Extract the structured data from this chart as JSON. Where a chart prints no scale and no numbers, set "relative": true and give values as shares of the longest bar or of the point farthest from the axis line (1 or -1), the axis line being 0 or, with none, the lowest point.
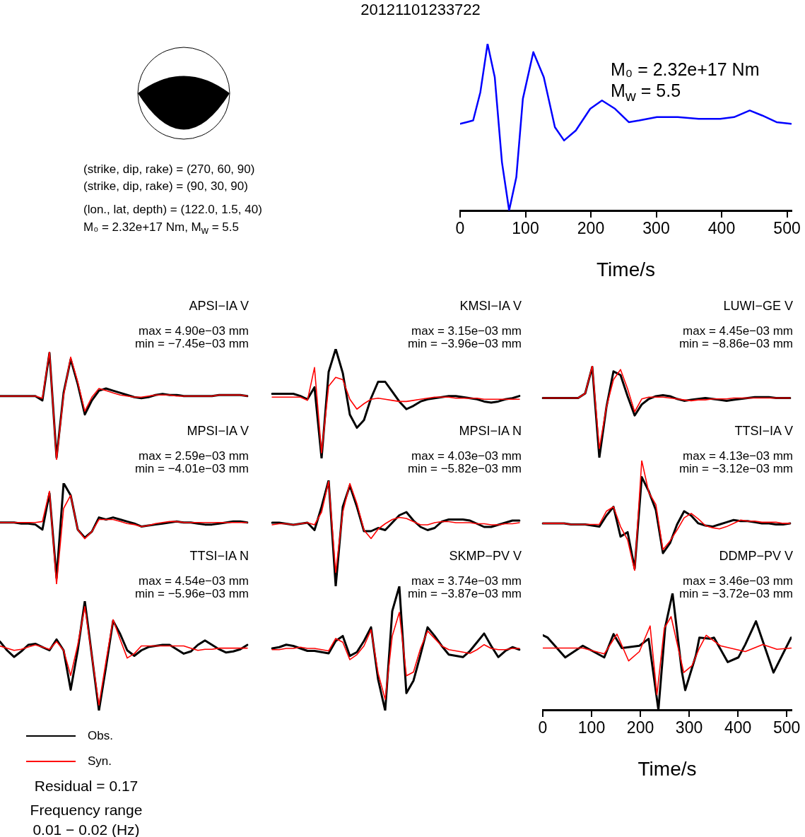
{
  "chart_data": [
    {
      "type": "other",
      "title": "20121101233722",
      "annotations": [
        "(strike, dip, rake) = (270, 60, 90)",
        "(strike, dip, rake) = (90, 30, 90)",
        "(lon., lat, depth) = (122.0, 1.5, 40)",
        "M₀ = 2.32e+17 Nm, M$_{w}$ = 5.5"
      ]
    },
    {
      "type": "line",
      "xlabel": "Time/s",
      "relative": true,
      "xlim": [
        0,
        507
      ],
      "xticks": [
        0,
        100,
        200,
        300,
        400,
        500
      ],
      "tick_labels": "x",
      "annotations": [
        "M₀ = 2.32e+17 Nm",
        "M$_{w}$ = 5.5"
      ],
      "series": [
        {
          "color": "#0000ff",
          "x": [
            0,
            10,
            20,
            31,
            42,
            53,
            64,
            75,
            86,
            96,
            112,
            128,
            145,
            159,
            177,
            199,
            217,
            237,
            258,
            274,
            301,
            333,
            365,
            398,
            419,
            443,
            462,
            484,
            506
          ],
          "values": [
            0.52,
            0.53,
            0.54,
            0.71,
            1.0,
            0.8,
            0.29,
            0.0,
            0.2,
            0.67,
            0.95,
            0.8,
            0.5,
            0.42,
            0.48,
            0.61,
            0.66,
            0.61,
            0.53,
            0.54,
            0.56,
            0.56,
            0.55,
            0.55,
            0.56,
            0.6,
            0.57,
            0.53,
            0.52
          ]
        }
      ]
    },
    {
      "type": "line",
      "title": "APSI−IA V",
      "relative": true,
      "tick_labels": false,
      "annotations": [
        "max = 4.90e−03 mm",
        "min = −7.45e−03 mm"
      ],
      "categories": [
        null,
        null,
        null,
        null,
        null,
        null,
        null,
        null,
        null,
        null,
        null,
        null,
        null,
        null,
        null,
        null,
        null,
        null,
        null,
        null,
        null,
        null,
        null,
        null,
        null,
        null,
        null,
        null,
        null,
        null,
        null,
        null,
        null,
        null,
        null,
        null
      ],
      "series": [
        {
          "color": "#000000",
          "values": [
            0.59,
            0.59,
            0.59,
            0.59,
            0.59,
            0.59,
            0.55,
            0.99,
            0.02,
            0.62,
            0.93,
            0.7,
            0.42,
            0.55,
            0.64,
            0.66,
            0.64,
            0.62,
            0.6,
            0.58,
            0.57,
            0.58,
            0.6,
            0.61,
            0.6,
            0.6,
            0.59,
            0.59,
            0.59,
            0.59,
            0.59,
            0.6,
            0.6,
            0.6,
            0.6,
            0.59
          ]
        },
        {
          "color": "#ff0000",
          "values": [
            0.59,
            0.59,
            0.59,
            0.59,
            0.59,
            0.59,
            0.57,
            1.0,
            0,
            0.6,
            0.95,
            0.72,
            0.45,
            0.58,
            0.66,
            0.64,
            0.62,
            0.6,
            0.59,
            0.58,
            0.58,
            0.59,
            0.6,
            0.6,
            0.6,
            0.59,
            0.59,
            0.59,
            0.59,
            0.59,
            0.59,
            0.6,
            0.6,
            0.6,
            0.6,
            0.59
          ]
        }
      ]
    },
    {
      "type": "line",
      "title": "KMSI−IA V",
      "relative": true,
      "tick_labels": false,
      "annotations": [
        "max = 3.15e−03 mm",
        "min = −3.96e−03 mm"
      ],
      "categories": [
        null,
        null,
        null,
        null,
        null,
        null,
        null,
        null,
        null,
        null,
        null,
        null,
        null,
        null,
        null,
        null,
        null,
        null,
        null,
        null,
        null,
        null,
        null,
        null,
        null,
        null,
        null,
        null,
        null,
        null,
        null,
        null,
        null,
        null,
        null,
        null
      ],
      "series": [
        {
          "color": "#000000",
          "values": [
            0.59,
            0.59,
            0.59,
            0.59,
            0.57,
            0.54,
            0.65,
            0,
            0.79,
            1.0,
            0.78,
            0.4,
            0.28,
            0.35,
            0.55,
            0.7,
            0.7,
            0.61,
            0.52,
            0.45,
            0.48,
            0.52,
            0.54,
            0.55,
            0.56,
            0.57,
            0.57,
            0.56,
            0.55,
            0.54,
            0.52,
            0.51,
            0.52,
            0.54,
            0.55,
            0.57
          ]
        },
        {
          "color": "#ff0000",
          "values": [
            0.56,
            0.56,
            0.56,
            0.56,
            0.56,
            0.53,
            0.83,
            0.05,
            0.66,
            0.74,
            0.72,
            0.54,
            0.45,
            0.5,
            0.54,
            0.55,
            0.54,
            0.53,
            0.52,
            0.52,
            0.53,
            0.54,
            0.55,
            0.56,
            0.56,
            0.56,
            0.55,
            0.55,
            0.55,
            0.55,
            0.54,
            0.54,
            0.54,
            0.54,
            0.54,
            0.54
          ]
        }
      ]
    },
    {
      "type": "line",
      "title": "LUWI−GE V",
      "relative": true,
      "tick_labels": false,
      "annotations": [
        "max = 4.45e−03 mm",
        "min = −8.86e−03 mm"
      ],
      "categories": [
        null,
        null,
        null,
        null,
        null,
        null,
        null,
        null,
        null,
        null,
        null,
        null,
        null,
        null,
        null,
        null,
        null,
        null,
        null,
        null,
        null,
        null,
        null,
        null,
        null,
        null,
        null,
        null,
        null,
        null,
        null,
        null,
        null,
        null,
        null,
        null
      ],
      "series": [
        {
          "color": "#000000",
          "values": [
            0.65,
            0.65,
            0.65,
            0.65,
            0.65,
            0.65,
            0.7,
            0.99,
            0,
            0.55,
            0.94,
            0.9,
            0.67,
            0.46,
            0.58,
            0.64,
            0.67,
            0.68,
            0.67,
            0.64,
            0.62,
            0.63,
            0.64,
            0.65,
            0.64,
            0.63,
            0.62,
            0.63,
            0.64,
            0.65,
            0.66,
            0.66,
            0.66,
            0.65,
            0.65,
            0.65
          ]
        },
        {
          "color": "#ff0000",
          "values": [
            0.65,
            0.65,
            0.65,
            0.65,
            0.65,
            0.65,
            0.7,
            1.0,
            0.1,
            0.55,
            0.85,
            0.96,
            0.75,
            0.5,
            0.64,
            0.66,
            0.66,
            0.66,
            0.65,
            0.64,
            0.63,
            0.62,
            0.63,
            0.63,
            0.64,
            0.64,
            0.64,
            0.65,
            0.65,
            0.65,
            0.65,
            0.65,
            0.65,
            0.65,
            0.65,
            0.65
          ]
        }
      ]
    },
    {
      "type": "line",
      "title": "MPSI−IA V",
      "relative": true,
      "tick_labels": false,
      "annotations": [
        "max = 2.59e−03 mm",
        "min = −4.01e−03 mm"
      ],
      "categories": [
        null,
        null,
        null,
        null,
        null,
        null,
        null,
        null,
        null,
        null,
        null,
        null,
        null,
        null,
        null,
        null,
        null,
        null,
        null,
        null,
        null,
        null,
        null,
        null,
        null,
        null,
        null,
        null,
        null,
        null,
        null,
        null,
        null,
        null,
        null,
        null
      ],
      "series": [
        {
          "color": "#000000",
          "values": [
            0.61,
            0.61,
            0.61,
            0.6,
            0.6,
            0.59,
            0.54,
            0.9,
            0.06,
            1.0,
            0.88,
            0.54,
            0.46,
            0.52,
            0.66,
            0.64,
            0.66,
            0.64,
            0.62,
            0.6,
            0.57,
            0.58,
            0.59,
            0.6,
            0.61,
            0.62,
            0.61,
            0.61,
            0.6,
            0.59,
            0.59,
            0.6,
            0.61,
            0.62,
            0.62,
            0.61
          ]
        },
        {
          "color": "#ff0000",
          "values": [
            0.61,
            0.61,
            0.61,
            0.61,
            0.61,
            0.61,
            0.62,
            0.92,
            0,
            0.75,
            0.88,
            0.54,
            0.45,
            0.52,
            0.64,
            0.64,
            0.64,
            0.62,
            0.6,
            0.59,
            0.57,
            0.58,
            0.6,
            0.61,
            0.62,
            0.62,
            0.61,
            0.61,
            0.61,
            0.61,
            0.61,
            0.61,
            0.61,
            0.61,
            0.61,
            0.61
          ]
        }
      ]
    },
    {
      "type": "line",
      "title": "MPSI−IA N",
      "relative": true,
      "tick_labels": false,
      "annotations": [
        "max = 4.03e−03 mm",
        "min = −5.82e−03 mm"
      ],
      "categories": [
        null,
        null,
        null,
        null,
        null,
        null,
        null,
        null,
        null,
        null,
        null,
        null,
        null,
        null,
        null,
        null,
        null,
        null,
        null,
        null,
        null,
        null,
        null,
        null,
        null,
        null,
        null,
        null,
        null,
        null,
        null,
        null,
        null,
        null,
        null,
        null
      ],
      "series": [
        {
          "color": "#000000",
          "values": [
            0.6,
            0.6,
            0.59,
            0.58,
            0.59,
            0.6,
            0.53,
            0.75,
            1.0,
            0,
            0.75,
            0.95,
            0.75,
            0.52,
            0.52,
            0.55,
            0.53,
            0.6,
            0.67,
            0.7,
            0.62,
            0.56,
            0.53,
            0.55,
            0.61,
            0.63,
            0.63,
            0.63,
            0.62,
            0.59,
            0.56,
            0.56,
            0.58,
            0.6,
            0.62,
            0.62
          ]
        },
        {
          "color": "#ff0000",
          "values": [
            0.58,
            0.59,
            0.59,
            0.58,
            0.59,
            0.6,
            0.58,
            0.7,
            0.99,
            0.13,
            0.7,
            0.97,
            0.78,
            0.53,
            0.45,
            0.54,
            0.59,
            0.63,
            0.65,
            0.64,
            0.61,
            0.58,
            0.58,
            0.6,
            0.61,
            0.61,
            0.6,
            0.6,
            0.6,
            0.59,
            0.59,
            0.58,
            0.58,
            0.59,
            0.59,
            0.6
          ]
        }
      ]
    },
    {
      "type": "line",
      "title": "TTSI−IA V",
      "relative": true,
      "tick_labels": false,
      "annotations": [
        "max = 4.13e−03 mm",
        "min = −3.12e−03 mm"
      ],
      "categories": [
        null,
        null,
        null,
        null,
        null,
        null,
        null,
        null,
        null,
        null,
        null,
        null,
        null,
        null,
        null,
        null,
        null,
        null,
        null,
        null,
        null,
        null,
        null,
        null,
        null,
        null,
        null,
        null,
        null,
        null,
        null,
        null,
        null,
        null,
        null,
        null
      ],
      "series": [
        {
          "color": "#000000",
          "values": [
            0.43,
            0.43,
            0.43,
            0.43,
            0.42,
            0.42,
            0.42,
            0.41,
            0.4,
            0.5,
            0.58,
            0.31,
            0.35,
            0.02,
            0.85,
            0.72,
            0.55,
            0.16,
            0.25,
            0.42,
            0.54,
            0.5,
            0.43,
            0.41,
            0.4,
            0.42,
            0.44,
            0.46,
            0.45,
            0.45,
            0.44,
            0.43,
            0.43,
            0.42,
            0.42,
            0.43
          ]
        },
        {
          "color": "#ff0000",
          "values": [
            0.43,
            0.43,
            0.43,
            0.43,
            0.42,
            0.42,
            0.42,
            0.42,
            0.42,
            0.54,
            0.58,
            0.4,
            0.28,
            0,
            1.0,
            0.71,
            0.6,
            0.19,
            0.27,
            0.37,
            0.48,
            0.52,
            0.47,
            0.41,
            0.39,
            0.38,
            0.4,
            0.43,
            0.46,
            0.45,
            0.45,
            0.44,
            0.44,
            0.44,
            0.43,
            0.43
          ]
        }
      ]
    },
    {
      "type": "line",
      "title": "TTSI−IA N",
      "relative": true,
      "tick_labels": false,
      "legend": "bottom left",
      "annotations": [
        "max = 4.54e−03 mm",
        "min = −5.96e−03 mm",
        "Residual = 0.17",
        "Frequency range",
        "0.01 − 0.02 (Hz)"
      ],
      "categories": [
        null,
        null,
        null,
        null,
        null,
        null,
        null,
        null,
        null,
        null,
        null,
        null,
        null,
        null,
        null,
        null,
        null,
        null,
        null,
        null,
        null,
        null,
        null,
        null,
        null,
        null,
        null,
        null,
        null,
        null,
        null,
        null,
        null,
        null,
        null,
        null
      ],
      "series": [
        {
          "name": "Obs.",
          "color": "#000000",
          "values": [
            0.63,
            0.55,
            0.49,
            0.54,
            0.6,
            0.61,
            0.58,
            0.55,
            0.65,
            0.55,
            0.19,
            0.55,
            1.0,
            0.5,
            0,
            0.4,
            0.82,
            0.7,
            0.55,
            0.5,
            0.55,
            0.58,
            0.59,
            0.6,
            0.6,
            0.56,
            0.52,
            0.54,
            0.6,
            0.64,
            0.6,
            0.56,
            0.53,
            0.54,
            0.56,
            0.6
          ]
        },
        {
          "name": "Syn.",
          "color": "#ff0000",
          "values": [
            0.59,
            0.57,
            0.55,
            0.56,
            0.58,
            0.6,
            0.58,
            0.56,
            0.63,
            0.55,
            0.32,
            0.6,
            0.95,
            0.5,
            0.05,
            0.45,
            0.83,
            0.65,
            0.48,
            0.52,
            0.59,
            0.59,
            0.59,
            0.59,
            0.59,
            0.59,
            0.59,
            0.57,
            0.55,
            0.56,
            0.56,
            0.57,
            0.57,
            0.57,
            0.57,
            0.57
          ]
        }
      ]
    },
    {
      "type": "line",
      "title": "SKMP−PV V",
      "relative": true,
      "tick_labels": false,
      "annotations": [
        "max = 3.74e−03 mm",
        "min = −3.87e−03 mm"
      ],
      "categories": [
        null,
        null,
        null,
        null,
        null,
        null,
        null,
        null,
        null,
        null,
        null,
        null,
        null,
        null,
        null,
        null,
        null,
        null,
        null,
        null,
        null,
        null,
        null,
        null,
        null,
        null,
        null,
        null,
        null,
        null,
        null,
        null,
        null,
        null,
        null,
        null
      ],
      "series": [
        {
          "color": "#000000",
          "values": [
            0.5,
            0.51,
            0.53,
            0.52,
            0.5,
            0.48,
            0.48,
            0.47,
            0.46,
            0.56,
            0.6,
            0.44,
            0.47,
            0.56,
            0.67,
            0.25,
            0,
            0.8,
            1.0,
            0.14,
            0.24,
            0.45,
            0.67,
            0.6,
            0.52,
            0.45,
            0.44,
            0.43,
            0.48,
            0.55,
            0.62,
            0.52,
            0.43,
            0.48,
            0.51,
            0.49
          ]
        },
        {
          "color": "#ff0000",
          "values": [
            0.49,
            0.49,
            0.5,
            0.5,
            0.51,
            0.5,
            0.5,
            0.49,
            0.48,
            0.58,
            0.55,
            0.41,
            0.45,
            0.52,
            0.65,
            0.3,
            0.09,
            0.6,
            0.79,
            0.28,
            0.31,
            0.5,
            0.64,
            0.58,
            0.52,
            0.49,
            0.48,
            0.47,
            0.46,
            0.49,
            0.53,
            0.5,
            0.49,
            0.49,
            0.5,
            0.5
          ]
        }
      ]
    },
    {
      "type": "line",
      "title": "DDMP−PV V",
      "xlabel": "Time/s",
      "relative": true,
      "xlim": [
        0,
        510
      ],
      "xticks": [
        0,
        100,
        200,
        300,
        400,
        500
      ],
      "tick_labels": "x",
      "annotations": [
        "max = 3.46e−03 mm",
        "min = −3.72e−03 mm"
      ],
      "series": [
        {
          "color": "#000000",
          "x": [
            0,
            10,
            46,
            82,
            126,
            145,
            162,
            198,
            217,
            237,
            251,
            266,
            285,
            292,
            314,
            321,
            343,
            351,
            379,
            401,
            415,
            437,
            473,
            509
          ],
          "values": [
            0.64,
            0.62,
            0.45,
            0.55,
            0.45,
            0.65,
            0.53,
            0.55,
            0.61,
            0,
            0.71,
            1.0,
            0.33,
            0.17,
            0.47,
            0.62,
            0.61,
            0.62,
            0.41,
            0.45,
            0.56,
            0.76,
            0.32,
            0.62
          ]
        },
        {
          "color": "#ff0000",
          "x": [
            0,
            82,
            126,
            152,
            176,
            198,
            220,
            234,
            249,
            263,
            289,
            306,
            321,
            335,
            364,
            415,
            451,
            480,
            509
          ],
          "values": [
            0.53,
            0.53,
            0.48,
            0.65,
            0.42,
            0.5,
            0.72,
            0.13,
            0.7,
            0.8,
            0.32,
            0.38,
            0.53,
            0.64,
            0.55,
            0.5,
            0.56,
            0.52,
            0.53
          ]
        }
      ]
    }
  ]
}
